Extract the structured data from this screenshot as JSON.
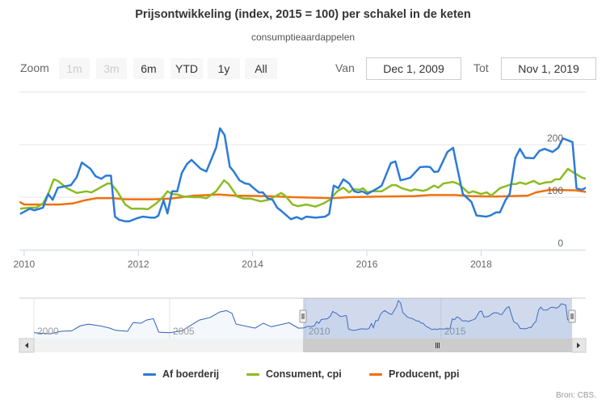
{
  "header": {
    "title": "Prijsontwikkeling (index, 2015 = 100) per schakel in de keten",
    "subtitle": "consumptieaardappelen"
  },
  "range_selector": {
    "zoom_label": "Zoom",
    "buttons": [
      {
        "label": "1m",
        "enabled": false
      },
      {
        "label": "3m",
        "enabled": false
      },
      {
        "label": "6m",
        "enabled": true
      },
      {
        "label": "YTD",
        "enabled": true
      },
      {
        "label": "1y",
        "enabled": true
      },
      {
        "label": "All",
        "enabled": true
      }
    ],
    "from_label": "Van",
    "from_value": "Dec 1, 2009",
    "to_label": "Tot",
    "to_value": "Nov 1, 2019"
  },
  "credits": "Bron: CBS.",
  "chart_data": {
    "type": "line",
    "title": "Prijsontwikkeling (index, 2015 = 100) per schakel in de keten",
    "subtitle": "consumptieaardappelen",
    "xlabel": "",
    "ylabel": "",
    "x_unit": "decimal year",
    "xlim": [
      2009.917,
      2019.833
    ],
    "ylim": [
      0,
      300
    ],
    "x_ticks": [
      "2010",
      "2012",
      "2014",
      "2016",
      "2018"
    ],
    "x_tick_values": [
      2010,
      2012,
      2014,
      2016,
      2018
    ],
    "y_ticks": [
      "0",
      "100",
      "200"
    ],
    "y_tick_values": [
      0,
      100,
      200
    ],
    "grid": true,
    "legend_position": "bottom",
    "series": [
      {
        "name": "Af boerderij",
        "color": "#2b7bd6",
        "points": [
          [
            2009.93,
            68
          ],
          [
            2010.1,
            78
          ],
          [
            2010.18,
            75
          ],
          [
            2010.33,
            80
          ],
          [
            2010.42,
            106
          ],
          [
            2010.5,
            95
          ],
          [
            2010.59,
            118
          ],
          [
            2010.82,
            123
          ],
          [
            2010.92,
            138
          ],
          [
            2011.01,
            166
          ],
          [
            2011.16,
            154
          ],
          [
            2011.25,
            140
          ],
          [
            2011.35,
            135
          ],
          [
            2011.43,
            141
          ],
          [
            2011.52,
            141
          ],
          [
            2011.59,
            63
          ],
          [
            2011.66,
            57
          ],
          [
            2011.77,
            54
          ],
          [
            2011.84,
            54
          ],
          [
            2011.98,
            60
          ],
          [
            2012.08,
            63
          ],
          [
            2012.22,
            61
          ],
          [
            2012.29,
            61
          ],
          [
            2012.35,
            65
          ],
          [
            2012.44,
            94
          ],
          [
            2012.51,
            69
          ],
          [
            2012.59,
            111
          ],
          [
            2012.68,
            111
          ],
          [
            2012.76,
            146
          ],
          [
            2012.85,
            163
          ],
          [
            2012.93,
            171
          ],
          [
            2013.09,
            154
          ],
          [
            2013.19,
            149
          ],
          [
            2013.36,
            194
          ],
          [
            2013.43,
            231
          ],
          [
            2013.51,
            218
          ],
          [
            2013.6,
            158
          ],
          [
            2013.67,
            149
          ],
          [
            2013.77,
            132
          ],
          [
            2013.87,
            126
          ],
          [
            2013.94,
            125
          ],
          [
            2014.01,
            118
          ],
          [
            2014.11,
            109
          ],
          [
            2014.18,
            109
          ],
          [
            2014.26,
            98
          ],
          [
            2014.35,
            95
          ],
          [
            2014.43,
            80
          ],
          [
            2014.5,
            74
          ],
          [
            2014.67,
            58
          ],
          [
            2014.77,
            62
          ],
          [
            2014.86,
            58
          ],
          [
            2014.94,
            63
          ],
          [
            2015.1,
            61
          ],
          [
            2015.27,
            63
          ],
          [
            2015.34,
            68
          ],
          [
            2015.42,
            122
          ],
          [
            2015.5,
            117
          ],
          [
            2015.59,
            134
          ],
          [
            2015.69,
            126
          ],
          [
            2015.78,
            111
          ],
          [
            2015.85,
            109
          ],
          [
            2015.92,
            111
          ],
          [
            2016.01,
            106
          ],
          [
            2016.09,
            111
          ],
          [
            2016.19,
            117
          ],
          [
            2016.26,
            122
          ],
          [
            2016.42,
            165
          ],
          [
            2016.5,
            168
          ],
          [
            2016.59,
            132
          ],
          [
            2016.66,
            134
          ],
          [
            2016.76,
            137
          ],
          [
            2016.93,
            157
          ],
          [
            2017.04,
            158
          ],
          [
            2017.11,
            157
          ],
          [
            2017.18,
            148
          ],
          [
            2017.25,
            149
          ],
          [
            2017.41,
            186
          ],
          [
            2017.51,
            194
          ],
          [
            2017.58,
            157
          ],
          [
            2017.68,
            106
          ],
          [
            2017.83,
            91
          ],
          [
            2017.92,
            65
          ],
          [
            2018.09,
            63
          ],
          [
            2018.16,
            65
          ],
          [
            2018.26,
            71
          ],
          [
            2018.33,
            71
          ],
          [
            2018.43,
            95
          ],
          [
            2018.5,
            106
          ],
          [
            2018.6,
            175
          ],
          [
            2018.68,
            192
          ],
          [
            2018.77,
            175
          ],
          [
            2018.92,
            174
          ],
          [
            2019.02,
            188
          ],
          [
            2019.11,
            192
          ],
          [
            2019.25,
            186
          ],
          [
            2019.35,
            194
          ],
          [
            2019.43,
            212
          ],
          [
            2019.6,
            205
          ],
          [
            2019.67,
            117
          ],
          [
            2019.76,
            114
          ],
          [
            2019.84,
            118
          ]
        ]
      },
      {
        "name": "Consument, cpi",
        "color": "#8bbc21",
        "points": [
          [
            2009.93,
            78
          ],
          [
            2010.1,
            80
          ],
          [
            2010.21,
            80
          ],
          [
            2010.33,
            88
          ],
          [
            2010.42,
            106
          ],
          [
            2010.52,
            134
          ],
          [
            2010.59,
            131
          ],
          [
            2010.75,
            117
          ],
          [
            2010.92,
            108
          ],
          [
            2011.09,
            111
          ],
          [
            2011.18,
            109
          ],
          [
            2011.46,
            126
          ],
          [
            2011.52,
            126
          ],
          [
            2011.63,
            111
          ],
          [
            2011.77,
            86
          ],
          [
            2011.88,
            78
          ],
          [
            2012.05,
            78
          ],
          [
            2012.17,
            77
          ],
          [
            2012.31,
            88
          ],
          [
            2012.44,
            101
          ],
          [
            2012.51,
            111
          ],
          [
            2012.59,
            106
          ],
          [
            2012.69,
            105
          ],
          [
            2012.79,
            101
          ],
          [
            2012.97,
            100
          ],
          [
            2013.09,
            100
          ],
          [
            2013.19,
            98
          ],
          [
            2013.36,
            111
          ],
          [
            2013.5,
            132
          ],
          [
            2013.58,
            125
          ],
          [
            2013.73,
            101
          ],
          [
            2013.85,
            97
          ],
          [
            2013.97,
            97
          ],
          [
            2014.14,
            92
          ],
          [
            2014.28,
            95
          ],
          [
            2014.39,
            101
          ],
          [
            2014.5,
            108
          ],
          [
            2014.57,
            103
          ],
          [
            2014.7,
            86
          ],
          [
            2014.79,
            83
          ],
          [
            2014.94,
            86
          ],
          [
            2015.1,
            82
          ],
          [
            2015.24,
            88
          ],
          [
            2015.35,
            95
          ],
          [
            2015.48,
            111
          ],
          [
            2015.59,
            118
          ],
          [
            2015.69,
            109
          ],
          [
            2015.76,
            115
          ],
          [
            2015.88,
            114
          ],
          [
            2015.93,
            117
          ],
          [
            2016.01,
            109
          ],
          [
            2016.09,
            111
          ],
          [
            2016.26,
            111
          ],
          [
            2016.44,
            123
          ],
          [
            2016.51,
            123
          ],
          [
            2016.61,
            117
          ],
          [
            2016.77,
            112
          ],
          [
            2016.84,
            115
          ],
          [
            2016.98,
            112
          ],
          [
            2017.05,
            114
          ],
          [
            2017.18,
            122
          ],
          [
            2017.25,
            118
          ],
          [
            2017.34,
            126
          ],
          [
            2017.51,
            129
          ],
          [
            2017.61,
            125
          ],
          [
            2017.69,
            117
          ],
          [
            2017.78,
            108
          ],
          [
            2017.86,
            111
          ],
          [
            2018.0,
            106
          ],
          [
            2018.1,
            109
          ],
          [
            2018.18,
            103
          ],
          [
            2018.33,
            117
          ],
          [
            2018.54,
            125
          ],
          [
            2018.61,
            125
          ],
          [
            2018.68,
            128
          ],
          [
            2018.78,
            125
          ],
          [
            2018.92,
            131
          ],
          [
            2019.02,
            125
          ],
          [
            2019.13,
            128
          ],
          [
            2019.23,
            129
          ],
          [
            2019.3,
            134
          ],
          [
            2019.38,
            134
          ],
          [
            2019.52,
            154
          ],
          [
            2019.63,
            146
          ],
          [
            2019.77,
            137
          ],
          [
            2019.84,
            135
          ]
        ]
      },
      {
        "name": "Producent, ppi",
        "color": "#f0700f",
        "points": [
          [
            2009.92,
            91
          ],
          [
            2010.0,
            86
          ],
          [
            2010.3,
            86
          ],
          [
            2010.62,
            86
          ],
          [
            2010.85,
            88
          ],
          [
            2011.06,
            94
          ],
          [
            2011.27,
            98
          ],
          [
            2011.55,
            98
          ],
          [
            2011.77,
            96
          ],
          [
            2012.27,
            96
          ],
          [
            2012.55,
            97
          ],
          [
            2012.98,
            103
          ],
          [
            2013.41,
            105
          ],
          [
            2013.7,
            103
          ],
          [
            2014.26,
            102
          ],
          [
            2014.7,
            100
          ],
          [
            2015.41,
            98
          ],
          [
            2015.69,
            100
          ],
          [
            2016.26,
            101
          ],
          [
            2016.82,
            102
          ],
          [
            2017.11,
            104
          ],
          [
            2017.54,
            104
          ],
          [
            2017.82,
            102
          ],
          [
            2018.25,
            101
          ],
          [
            2018.82,
            103
          ],
          [
            2018.96,
            109
          ],
          [
            2019.21,
            114
          ],
          [
            2019.66,
            113
          ],
          [
            2019.84,
            110
          ]
        ]
      }
    ],
    "navigator": {
      "x_ticks": [
        "2000",
        "2005",
        "2010",
        "2015"
      ],
      "x_tick_values": [
        2000,
        2005,
        2010,
        2015
      ],
      "xlim": [
        2000.0,
        2019.833
      ],
      "selected_range": [
        2009.917,
        2019.833
      ],
      "series_name": "Af boerderij",
      "points_before_range": [
        [
          2000.0,
          40
        ],
        [
          2000.6,
          33
        ],
        [
          2001.0,
          48
        ],
        [
          2001.4,
          51
        ],
        [
          2001.7,
          80
        ],
        [
          2002.0,
          91
        ],
        [
          2002.45,
          80
        ],
        [
          2002.8,
          67
        ],
        [
          2003.0,
          54
        ],
        [
          2003.45,
          48
        ],
        [
          2003.65,
          99
        ],
        [
          2003.95,
          96
        ],
        [
          2004.15,
          115
        ],
        [
          2004.4,
          123
        ],
        [
          2004.6,
          43
        ],
        [
          2005.0,
          40
        ],
        [
          2005.45,
          51
        ],
        [
          2006.1,
          115
        ],
        [
          2006.5,
          131
        ],
        [
          2006.85,
          163
        ],
        [
          2007.1,
          171
        ],
        [
          2007.3,
          155
        ],
        [
          2007.45,
          91
        ],
        [
          2008.15,
          67
        ],
        [
          2008.45,
          96
        ],
        [
          2008.75,
          75
        ],
        [
          2009.4,
          99
        ],
        [
          2009.75,
          67
        ]
      ]
    }
  }
}
